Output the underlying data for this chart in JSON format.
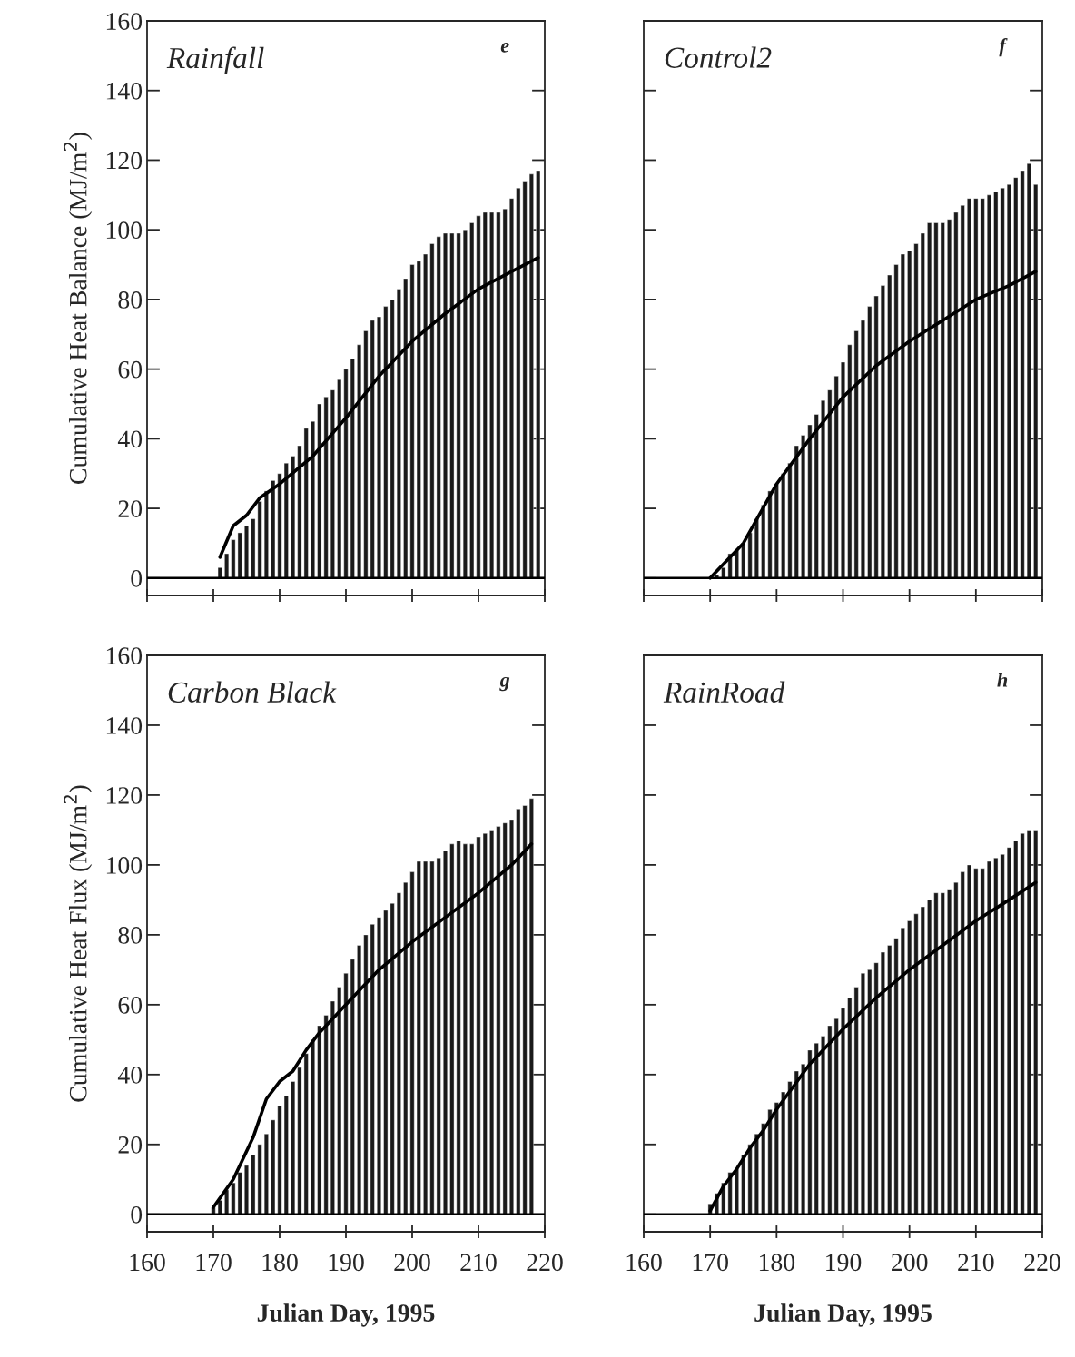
{
  "chart_data": [
    {
      "type": "bar",
      "title": "Rainfall",
      "annotations": [
        "e"
      ],
      "ylabel": "Cumulative Heat Balance (MJ/m$^{2}$)",
      "xlim": [
        160,
        220
      ],
      "xticks": [
        160,
        170,
        180,
        190,
        200,
        210,
        220
      ],
      "ylim": [
        -5,
        160
      ],
      "yticks": [
        0,
        20,
        40,
        60,
        80,
        100,
        120,
        140,
        160
      ],
      "tick_labels": "y",
      "ref_lines": [
        {
          "axis": "y",
          "value": 0
        }
      ],
      "series": [
        {
          "color": "#1a1a1a",
          "x": [
            171,
            172,
            173,
            174,
            175,
            176,
            177,
            178,
            179,
            180,
            181,
            182,
            183,
            184,
            185,
            186,
            187,
            188,
            189,
            190,
            191,
            192,
            193,
            194,
            195,
            196,
            197,
            198,
            199,
            200,
            201,
            202,
            203,
            204,
            205,
            206,
            207,
            208,
            209,
            210,
            211,
            212,
            213,
            214,
            215,
            216,
            217,
            218,
            219
          ],
          "values": [
            3,
            7,
            11,
            13,
            15,
            17,
            22,
            25,
            28,
            30,
            33,
            35,
            38,
            43,
            45,
            50,
            52,
            54,
            57,
            60,
            63,
            67,
            71,
            74,
            75,
            78,
            80,
            83,
            86,
            90,
            91,
            93,
            96,
            98,
            99,
            99,
            99,
            100,
            102,
            104,
            105,
            105,
            105,
            106,
            109,
            112,
            114,
            116,
            117
          ]
        },
        {
          "type": "line",
          "color": "#000000",
          "x": [
            171,
            173,
            175,
            177,
            180,
            185,
            190,
            195,
            200,
            205,
            210,
            215,
            219
          ],
          "values": [
            6,
            15,
            18,
            23,
            27,
            35,
            46,
            58,
            68,
            76,
            83,
            88,
            92
          ]
        }
      ]
    },
    {
      "type": "bar",
      "title": "Control2",
      "annotations": [
        "f"
      ],
      "xlim": [
        160,
        220
      ],
      "xticks": [
        160,
        170,
        180,
        190,
        200,
        210,
        220
      ],
      "ylim": [
        -5,
        160
      ],
      "yticks": [
        0,
        20,
        40,
        60,
        80,
        100,
        120,
        140,
        160
      ],
      "tick_labels": false,
      "ref_lines": [
        {
          "axis": "y",
          "value": 0
        }
      ],
      "series": [
        {
          "color": "#1a1a1a",
          "x": [
            171,
            172,
            173,
            174,
            175,
            176,
            177,
            178,
            179,
            180,
            181,
            182,
            183,
            184,
            185,
            186,
            187,
            188,
            189,
            190,
            191,
            192,
            193,
            194,
            195,
            196,
            197,
            198,
            199,
            200,
            201,
            202,
            203,
            204,
            205,
            206,
            207,
            208,
            209,
            210,
            211,
            212,
            213,
            214,
            215,
            216,
            217,
            218,
            219
          ],
          "values": [
            1,
            3,
            7,
            8,
            10,
            13,
            17,
            21,
            25,
            27,
            30,
            33,
            38,
            41,
            44,
            47,
            51,
            54,
            58,
            62,
            67,
            71,
            74,
            78,
            81,
            84,
            87,
            90,
            93,
            94,
            96,
            99,
            102,
            102,
            102,
            103,
            105,
            107,
            109,
            109,
            109,
            110,
            111,
            112,
            113,
            115,
            117,
            119,
            113
          ]
        },
        {
          "type": "line",
          "color": "#000000",
          "x": [
            170,
            175,
            180,
            185,
            190,
            195,
            200,
            205,
            210,
            215,
            219
          ],
          "values": [
            0,
            10,
            27,
            40,
            52,
            61,
            68,
            74,
            80,
            84,
            88
          ]
        }
      ]
    },
    {
      "type": "bar",
      "title": "Carbon Black",
      "annotations": [
        "g"
      ],
      "ylabel": "Cumulative Heat Flux (MJ/m$^{2}$)",
      "xlabel": "Julian Day, 1995",
      "xlim": [
        160,
        220
      ],
      "xticks": [
        160,
        170,
        180,
        190,
        200,
        210,
        220
      ],
      "ylim": [
        -5,
        160
      ],
      "yticks": [
        0,
        20,
        40,
        60,
        80,
        100,
        120,
        140,
        160
      ],
      "ref_lines": [
        {
          "axis": "y",
          "value": 0
        }
      ],
      "series": [
        {
          "color": "#1a1a1a",
          "x": [
            170,
            171,
            172,
            173,
            174,
            175,
            176,
            177,
            178,
            179,
            180,
            181,
            182,
            183,
            184,
            185,
            186,
            187,
            188,
            189,
            190,
            191,
            192,
            193,
            194,
            195,
            196,
            197,
            198,
            199,
            200,
            201,
            202,
            203,
            204,
            205,
            206,
            207,
            208,
            209,
            210,
            211,
            212,
            213,
            214,
            215,
            216,
            217,
            218
          ],
          "values": [
            2,
            4,
            7,
            9,
            12,
            14,
            17,
            20,
            23,
            27,
            31,
            34,
            38,
            42,
            46,
            50,
            54,
            57,
            61,
            65,
            69,
            73,
            77,
            80,
            83,
            85,
            87,
            89,
            92,
            95,
            98,
            101,
            101,
            101,
            102,
            104,
            106,
            107,
            106,
            106,
            108,
            109,
            110,
            111,
            112,
            113,
            116,
            117,
            119
          ]
        },
        {
          "type": "line",
          "color": "#000000",
          "x": [
            170,
            173,
            176,
            178,
            180,
            182,
            184,
            186,
            190,
            195,
            200,
            205,
            210,
            215,
            218
          ],
          "values": [
            2,
            10,
            22,
            33,
            38,
            41,
            47,
            52,
            60,
            70,
            78,
            85,
            92,
            100,
            106
          ]
        }
      ]
    },
    {
      "type": "bar",
      "title": "RainRoad",
      "annotations": [
        "h"
      ],
      "xlabel": "Julian Day, 1995",
      "xlim": [
        160,
        220
      ],
      "xticks": [
        160,
        170,
        180,
        190,
        200,
        210,
        220
      ],
      "ylim": [
        -5,
        160
      ],
      "yticks": [
        0,
        20,
        40,
        60,
        80,
        100,
        120,
        140,
        160
      ],
      "tick_labels": "x",
      "ref_lines": [
        {
          "axis": "y",
          "value": 0
        }
      ],
      "series": [
        {
          "color": "#1a1a1a",
          "x": [
            170,
            171,
            172,
            173,
            174,
            175,
            176,
            177,
            178,
            179,
            180,
            181,
            182,
            183,
            184,
            185,
            186,
            187,
            188,
            189,
            190,
            191,
            192,
            193,
            194,
            195,
            196,
            197,
            198,
            199,
            200,
            201,
            202,
            203,
            204,
            205,
            206,
            207,
            208,
            209,
            210,
            211,
            212,
            213,
            214,
            215,
            216,
            217,
            218,
            219
          ],
          "values": [
            3,
            6,
            9,
            12,
            13,
            17,
            20,
            23,
            26,
            30,
            32,
            35,
            38,
            41,
            43,
            47,
            49,
            51,
            54,
            56,
            59,
            62,
            65,
            69,
            70,
            72,
            75,
            77,
            79,
            82,
            84,
            86,
            88,
            90,
            92,
            92,
            93,
            95,
            98,
            100,
            99,
            99,
            101,
            102,
            103,
            105,
            107,
            109,
            110,
            110
          ]
        },
        {
          "type": "line",
          "color": "#000000",
          "x": [
            170,
            172,
            174,
            176,
            178,
            180,
            185,
            190,
            195,
            200,
            205,
            210,
            215,
            219
          ],
          "values": [
            1,
            8,
            13,
            19,
            24,
            30,
            43,
            53,
            62,
            70,
            77,
            84,
            90,
            95
          ]
        }
      ]
    }
  ]
}
